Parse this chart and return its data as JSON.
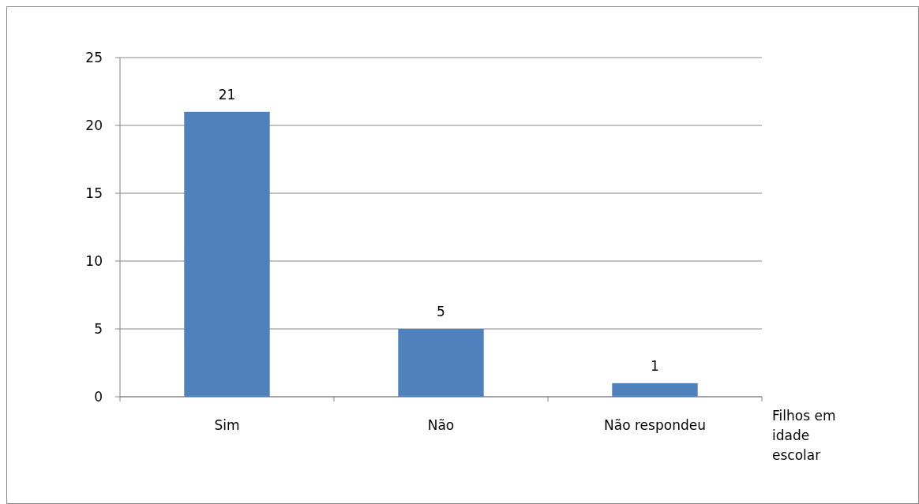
{
  "chart_data": {
    "type": "bar",
    "xlabel": "Filhos em idade escolar",
    "categories": [
      "Sim",
      "Não",
      "Não respondeu"
    ],
    "values": [
      21,
      5,
      1
    ],
    "color": "#4f81bd",
    "ylim": [
      0,
      25
    ],
    "yticks": [
      0,
      5,
      10,
      15,
      20,
      25
    ],
    "grid": "y",
    "data_labels": true
  }
}
